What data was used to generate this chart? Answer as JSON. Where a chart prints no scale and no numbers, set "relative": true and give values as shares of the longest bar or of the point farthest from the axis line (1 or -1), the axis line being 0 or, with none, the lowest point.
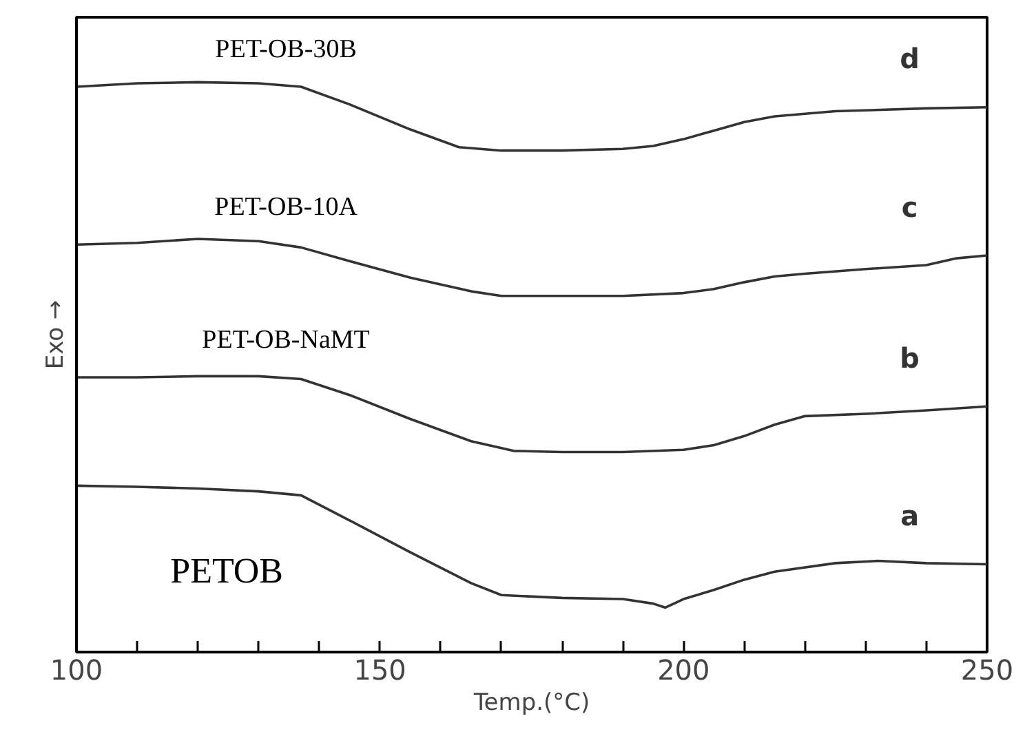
{
  "chart_data": {
    "type": "line",
    "relative": true,
    "xlabel": "Temp.(°C)",
    "ylabel": "Exo →",
    "tick_labels": "x",
    "grid": false,
    "marker": "none",
    "line_style": "solid",
    "xlim": [
      100,
      250
    ],
    "xticks": [
      100,
      150,
      200,
      250
    ],
    "series": [
      {
        "name": "PETOB",
        "color": "#333333",
        "x": [
          100,
          110,
          120,
          130,
          137,
          145,
          155,
          165,
          170,
          180,
          190,
          195,
          197,
          200,
          205,
          210,
          215,
          225,
          232,
          240,
          250
        ],
        "values": [
          0.292,
          0.29,
          0.287,
          0.282,
          0.275,
          0.231,
          0.175,
          0.121,
          0.1,
          0.095,
          0.093,
          0.085,
          0.078,
          0.093,
          0.109,
          0.127,
          0.141,
          0.156,
          0.16,
          0.156,
          0.154
        ]
      },
      {
        "name": "PET-OB-NaMT",
        "color": "#333333",
        "x": [
          100,
          110,
          120,
          130,
          137,
          145,
          155,
          165,
          172,
          180,
          190,
          200,
          205,
          210,
          215,
          220,
          230,
          240,
          250
        ],
        "values": [
          0.482,
          0.482,
          0.484,
          0.484,
          0.479,
          0.451,
          0.409,
          0.37,
          0.353,
          0.351,
          0.351,
          0.355,
          0.363,
          0.379,
          0.399,
          0.414,
          0.418,
          0.424,
          0.431
        ]
      },
      {
        "name": "PET-OB-10A",
        "color": "#333333",
        "x": [
          100,
          110,
          120,
          130,
          137,
          145,
          155,
          165,
          170,
          180,
          190,
          200,
          205,
          210,
          215,
          220,
          230,
          240,
          245,
          250
        ],
        "values": [
          0.715,
          0.718,
          0.725,
          0.721,
          0.71,
          0.686,
          0.657,
          0.633,
          0.625,
          0.625,
          0.625,
          0.63,
          0.637,
          0.649,
          0.659,
          0.664,
          0.672,
          0.679,
          0.691,
          0.696
        ]
      },
      {
        "name": "PET-OB-30B",
        "color": "#333333",
        "x": [
          100,
          110,
          120,
          130,
          137,
          145,
          155,
          163,
          170,
          180,
          190,
          195,
          200,
          205,
          210,
          215,
          225,
          240,
          250
        ],
        "values": [
          0.992,
          0.998,
          1.0,
          0.998,
          0.992,
          0.961,
          0.917,
          0.886,
          0.88,
          0.88,
          0.883,
          0.888,
          0.9,
          0.915,
          0.93,
          0.94,
          0.949,
          0.954,
          0.956
        ]
      }
    ],
    "annotations": [
      "a",
      "b",
      "c",
      "d"
    ]
  }
}
